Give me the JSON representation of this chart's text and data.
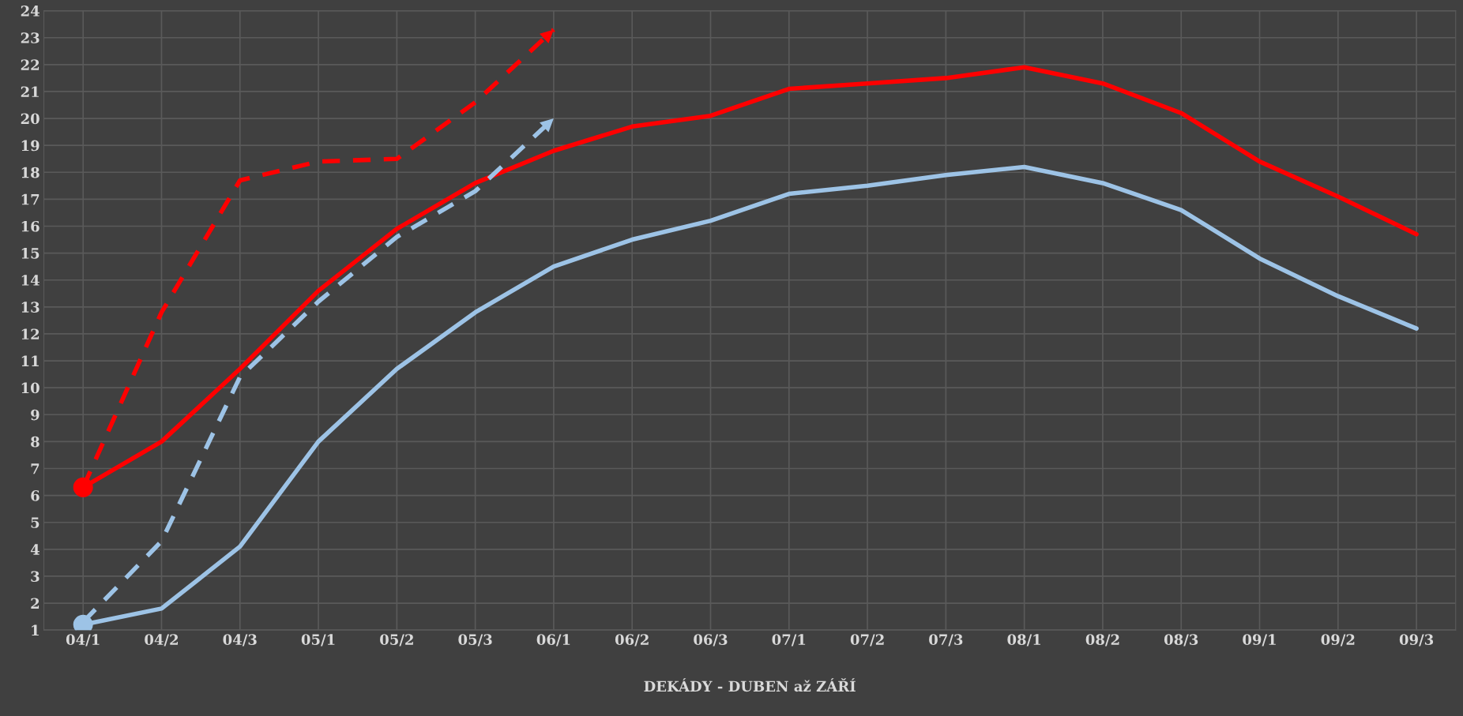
{
  "chart_data": {
    "type": "line",
    "xlabel": "DEKÁDY - DUBEN až ZÁŘÍ",
    "categories": [
      "04/1",
      "04/2",
      "04/3",
      "05/1",
      "05/2",
      "05/3",
      "06/1",
      "06/2",
      "06/3",
      "07/1",
      "07/2",
      "07/3",
      "08/1",
      "08/2",
      "08/3",
      "09/1",
      "09/2",
      "09/3"
    ],
    "series": [
      {
        "color": "#ff0000",
        "line_style": "solid",
        "values": [
          6.3,
          8.0,
          10.7,
          13.6,
          15.9,
          17.6,
          18.8,
          19.7,
          20.1,
          21.1,
          21.3,
          21.5,
          21.9,
          21.3,
          20.2,
          18.4,
          17.1,
          15.7
        ]
      },
      {
        "color": "#9dc3e6",
        "line_style": "solid",
        "values": [
          1.2,
          1.8,
          4.1,
          8.0,
          10.7,
          12.8,
          14.5,
          15.5,
          16.2,
          17.2,
          17.5,
          17.9,
          18.2,
          17.6,
          16.6,
          14.8,
          13.4,
          12.2
        ]
      },
      {
        "color": "#ff0000",
        "marker": "none",
        "line_style": "dashed",
        "values": [
          6.3,
          12.8,
          17.7,
          18.4,
          18.5,
          20.6,
          23.3,
          null,
          null,
          null,
          null,
          null,
          null,
          null,
          null,
          null,
          null,
          null
        ]
      },
      {
        "color": "#9dc3e6",
        "marker": "none",
        "line_style": "dashed",
        "values": [
          1.3,
          4.3,
          10.4,
          13.2,
          15.6,
          17.3,
          20.0,
          null,
          null,
          null,
          null,
          null,
          null,
          null,
          null,
          null,
          null,
          null
        ]
      },
      {
        "type": "scatter",
        "color": "#ff0000",
        "marker": "circle",
        "x": [
          "04/1"
        ],
        "values": [
          6.3
        ]
      },
      {
        "type": "scatter",
        "color": "#9dc3e6",
        "marker": "circle",
        "x": [
          "04/1"
        ],
        "values": [
          1.2
        ]
      }
    ],
    "ylim": [
      1,
      24
    ],
    "yticks": [
      1,
      2,
      3,
      4,
      5,
      6,
      7,
      8,
      9,
      10,
      11,
      12,
      13,
      14,
      15,
      16,
      17,
      18,
      19,
      20,
      21,
      22,
      23,
      24
    ],
    "grid": true,
    "legend": false
  }
}
